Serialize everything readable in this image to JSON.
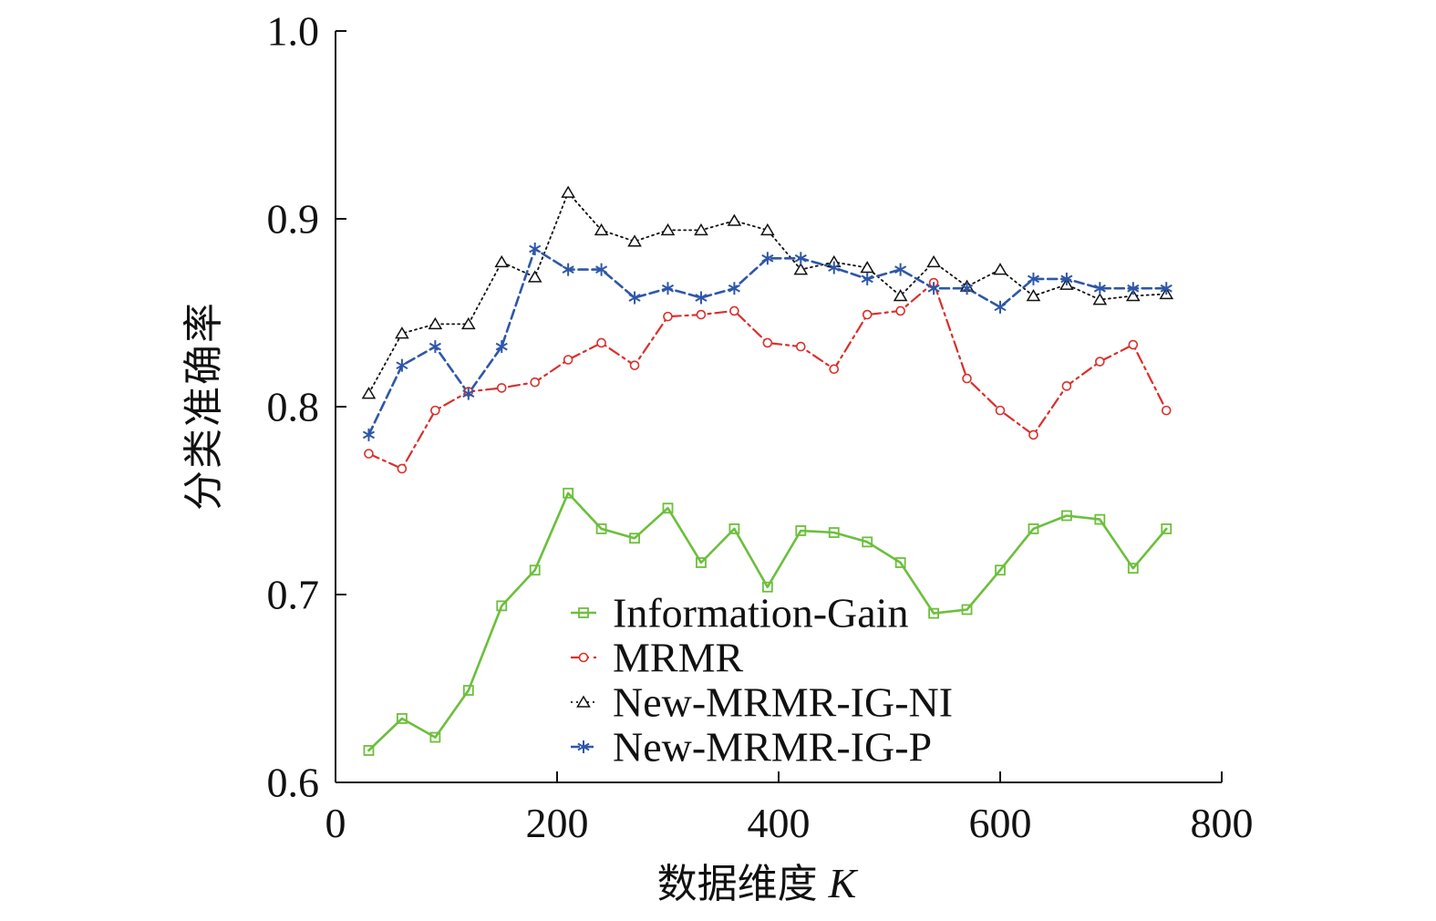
{
  "chart_data": {
    "type": "line",
    "title": "",
    "xlabel": "数据维度",
    "xlabel_var": "K",
    "ylabel": "分类准确率",
    "xlim": [
      0,
      800
    ],
    "ylim": [
      0.6,
      1.0
    ],
    "xticks": [
      "0",
      "200",
      "400",
      "600",
      "800"
    ],
    "yticks": [
      "0.6",
      "0.7",
      "0.8",
      "0.9",
      "1.0"
    ],
    "grid": false,
    "legend_position": "center-bottom",
    "x": [
      30,
      60,
      90,
      120,
      150,
      180,
      210,
      240,
      270,
      300,
      330,
      360,
      390,
      420,
      450,
      480,
      510,
      540,
      570,
      600,
      630,
      660,
      690,
      720,
      750
    ],
    "series": [
      {
        "name": "Information-Gain",
        "color": "#6cbf3c",
        "marker": "square",
        "dash": "solid",
        "values": [
          0.617,
          0.634,
          0.624,
          0.649,
          0.694,
          0.713,
          0.754,
          0.735,
          0.73,
          0.746,
          0.717,
          0.735,
          0.704,
          0.734,
          0.733,
          0.728,
          0.717,
          0.69,
          0.692,
          0.713,
          0.735,
          0.742,
          0.74,
          0.714,
          0.735
        ]
      },
      {
        "name": "MRMR",
        "color": "#d9302c",
        "marker": "circle",
        "dash": "dashdot",
        "values": [
          0.775,
          0.767,
          0.798,
          0.808,
          0.81,
          0.813,
          0.825,
          0.834,
          0.822,
          0.848,
          0.849,
          0.851,
          0.834,
          0.832,
          0.82,
          0.849,
          0.851,
          0.866,
          0.815,
          0.798,
          0.785,
          0.811,
          0.824,
          0.833,
          0.798
        ]
      },
      {
        "name": "New-MRMR-IG-NI",
        "color": "#111111",
        "marker": "triangle",
        "dash": "dotted",
        "values": [
          0.807,
          0.839,
          0.844,
          0.844,
          0.877,
          0.869,
          0.914,
          0.894,
          0.888,
          0.894,
          0.894,
          0.899,
          0.894,
          0.873,
          0.877,
          0.874,
          0.859,
          0.877,
          0.864,
          0.873,
          0.859,
          0.865,
          0.857,
          0.859,
          0.86
        ]
      },
      {
        "name": "New-MRMR-IG-P",
        "color": "#2e57a8",
        "marker": "asterisk",
        "dash": "dashed",
        "values": [
          0.785,
          0.822,
          0.832,
          0.807,
          0.832,
          0.884,
          0.873,
          0.873,
          0.858,
          0.863,
          0.858,
          0.863,
          0.879,
          0.879,
          0.874,
          0.868,
          0.873,
          0.863,
          0.863,
          0.853,
          0.868,
          0.868,
          0.863,
          0.863,
          0.863
        ]
      }
    ]
  }
}
